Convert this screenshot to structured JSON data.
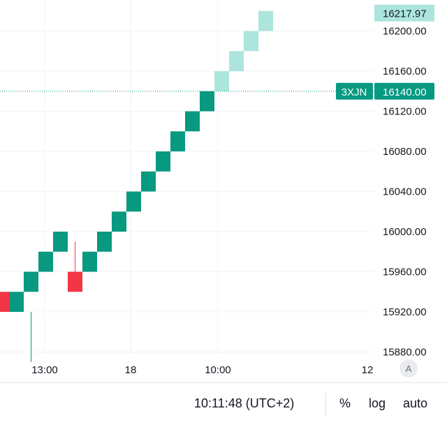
{
  "chart_data": {
    "type": "renko",
    "box_size": 20,
    "y_ticks": [
      15880,
      15920,
      15960,
      16000,
      16040,
      16080,
      16120,
      16160,
      16200
    ],
    "y_tick_labels": [
      "15880.00",
      "15920.00",
      "15960.00",
      "16000.00",
      "16040.00",
      "16080.00",
      "16120.00",
      "16160.00",
      "16200.00"
    ],
    "x_ticks": [
      "13:00",
      "18",
      "10:00",
      "12"
    ],
    "bricks": [
      {
        "open": 15940,
        "close": 15920,
        "dir": "down",
        "projected": false
      },
      {
        "open": 15920,
        "close": 15940,
        "dir": "up",
        "projected": false
      },
      {
        "open": 15940,
        "close": 15960,
        "dir": "up",
        "projected": false
      },
      {
        "open": 15960,
        "close": 15980,
        "dir": "up",
        "projected": false
      },
      {
        "open": 15980,
        "close": 16000,
        "dir": "up",
        "projected": false
      },
      {
        "open": 15960,
        "close": 15940,
        "dir": "down",
        "projected": false
      },
      {
        "open": 15960,
        "close": 15980,
        "dir": "up",
        "projected": false
      },
      {
        "open": 15980,
        "close": 16000,
        "dir": "up",
        "projected": false
      },
      {
        "open": 16000,
        "close": 16020,
        "dir": "up",
        "projected": false
      },
      {
        "open": 16020,
        "close": 16040,
        "dir": "up",
        "projected": false
      },
      {
        "open": 16040,
        "close": 16060,
        "dir": "up",
        "projected": false
      },
      {
        "open": 16060,
        "close": 16080,
        "dir": "up",
        "projected": false
      },
      {
        "open": 16080,
        "close": 16100,
        "dir": "up",
        "projected": false
      },
      {
        "open": 16100,
        "close": 16120,
        "dir": "up",
        "projected": false
      },
      {
        "open": 16120,
        "close": 16140,
        "dir": "up",
        "projected": false
      },
      {
        "open": 16140,
        "close": 16160,
        "dir": "up",
        "projected": true
      },
      {
        "open": 16160,
        "close": 16180,
        "dir": "up",
        "projected": true
      },
      {
        "open": 16180,
        "close": 16200,
        "dir": "up",
        "projected": true
      },
      {
        "open": 16200,
        "close": 16220,
        "dir": "up",
        "projected": true
      }
    ],
    "wicks": [
      {
        "brick_index": 2,
        "low": 15870,
        "high": 15920
      },
      {
        "brick_index": 5,
        "low": 15960,
        "high": 15990
      }
    ],
    "current_price": {
      "value": 16140.0,
      "label": "16140.00",
      "symbol": "3XJN"
    },
    "top_label": {
      "value": 16217.97,
      "label": "16217.97"
    },
    "colors": {
      "up": "#089981",
      "down": "#f23645",
      "projected": "#ace5dc",
      "grid": "#f0f3fa",
      "price_line": "#089981"
    },
    "grid": true
  },
  "footer": {
    "time": "10:11:48 (UTC+2)",
    "percent": "%",
    "log": "log",
    "auto": "auto"
  },
  "auto_scale_button": "A"
}
